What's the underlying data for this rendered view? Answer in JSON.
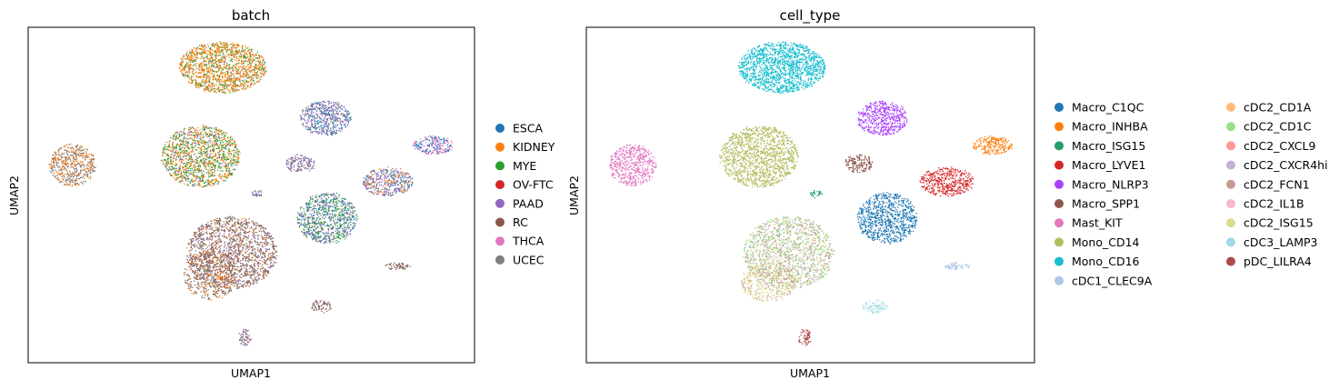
{
  "chart_data": [
    {
      "type": "scatter",
      "title": "batch",
      "xlabel": "UMAP1",
      "ylabel": "UMAP2",
      "legend_position": "right",
      "legend": [
        {
          "label": "ESCA",
          "color": "#1f77b4"
        },
        {
          "label": "KIDNEY",
          "color": "#ff7f0e"
        },
        {
          "label": "MYE",
          "color": "#2ca02c"
        },
        {
          "label": "OV-FTC",
          "color": "#d62728"
        },
        {
          "label": "PAAD",
          "color": "#9467bd"
        },
        {
          "label": "RC",
          "color": "#8c564b"
        },
        {
          "label": "THCA",
          "color": "#e377c2"
        },
        {
          "label": "UCEC",
          "color": "#7f7f7f"
        }
      ]
    },
    {
      "type": "scatter",
      "title": "cell_type",
      "xlabel": "UMAP1",
      "ylabel": "UMAP2",
      "legend_position": "right",
      "legend": [
        {
          "label": "Macro_C1QC",
          "color": "#1f77b4"
        },
        {
          "label": "Macro_INHBA",
          "color": "#ff7f0e"
        },
        {
          "label": "Macro_ISG15",
          "color": "#279e68"
        },
        {
          "label": "Macro_LYVE1",
          "color": "#d62728"
        },
        {
          "label": "Macro_NLRP3",
          "color": "#aa40fc"
        },
        {
          "label": "Macro_SPP1",
          "color": "#8c564b"
        },
        {
          "label": "Mast_KIT",
          "color": "#e377c2"
        },
        {
          "label": "Mono_CD14",
          "color": "#b5bd61"
        },
        {
          "label": "Mono_CD16",
          "color": "#17becf"
        },
        {
          "label": "cDC1_CLEC9A",
          "color": "#aec7e8"
        },
        {
          "label": "cDC2_CD1A",
          "color": "#ffbb78"
        },
        {
          "label": "cDC2_CD1C",
          "color": "#98df8a"
        },
        {
          "label": "cDC2_CXCL9",
          "color": "#ff9896"
        },
        {
          "label": "cDC2_CXCR4hi",
          "color": "#c5b0d5"
        },
        {
          "label": "cDC2_FCN1",
          "color": "#c49c94"
        },
        {
          "label": "cDC2_IL1B",
          "color": "#f7b6d2"
        },
        {
          "label": "cDC2_ISG15",
          "color": "#dbdb8d"
        },
        {
          "label": "cDC3_LAMP3",
          "color": "#9edae5"
        },
        {
          "label": "pDC_LILRA4",
          "color": "#ad494a"
        }
      ]
    }
  ]
}
